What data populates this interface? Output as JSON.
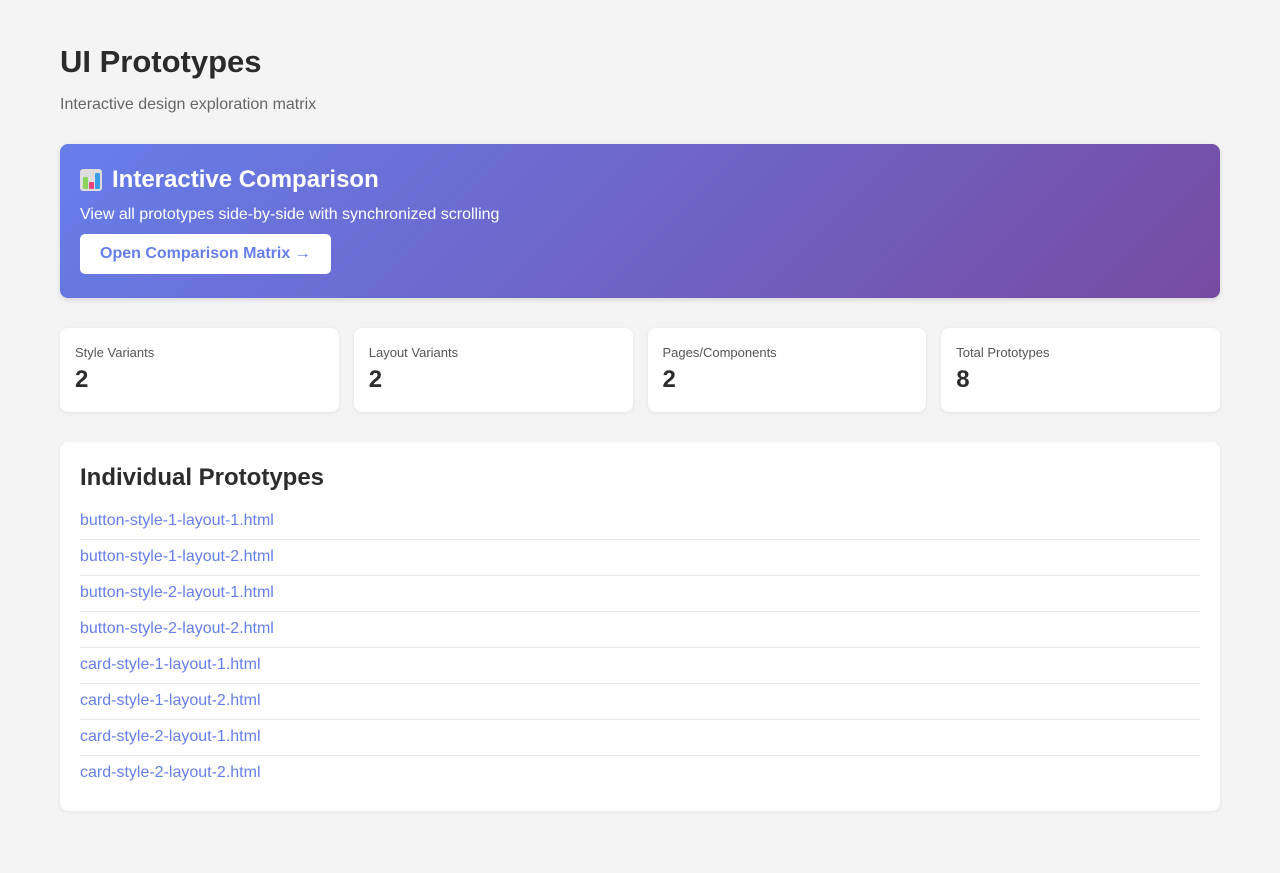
{
  "header": {
    "title": "UI Prototypes",
    "subtitle": "Interactive design exploration matrix"
  },
  "banner": {
    "icon": "bar-chart-icon",
    "title": "Interactive Comparison",
    "description": "View all prototypes side-by-side with synchronized scrolling",
    "button_label": "Open Comparison Matrix →",
    "gradient": [
      "#667eea",
      "#764ba2"
    ]
  },
  "stats": [
    {
      "label": "Style Variants",
      "value": "2"
    },
    {
      "label": "Layout Variants",
      "value": "2"
    },
    {
      "label": "Pages/Components",
      "value": "2"
    },
    {
      "label": "Total Prototypes",
      "value": "8"
    }
  ],
  "prototypes": {
    "title": "Individual Prototypes",
    "items": [
      "button-style-1-layout-1.html",
      "button-style-1-layout-2.html",
      "button-style-2-layout-1.html",
      "button-style-2-layout-2.html",
      "card-style-1-layout-1.html",
      "card-style-1-layout-2.html",
      "card-style-2-layout-1.html",
      "card-style-2-layout-2.html"
    ]
  }
}
